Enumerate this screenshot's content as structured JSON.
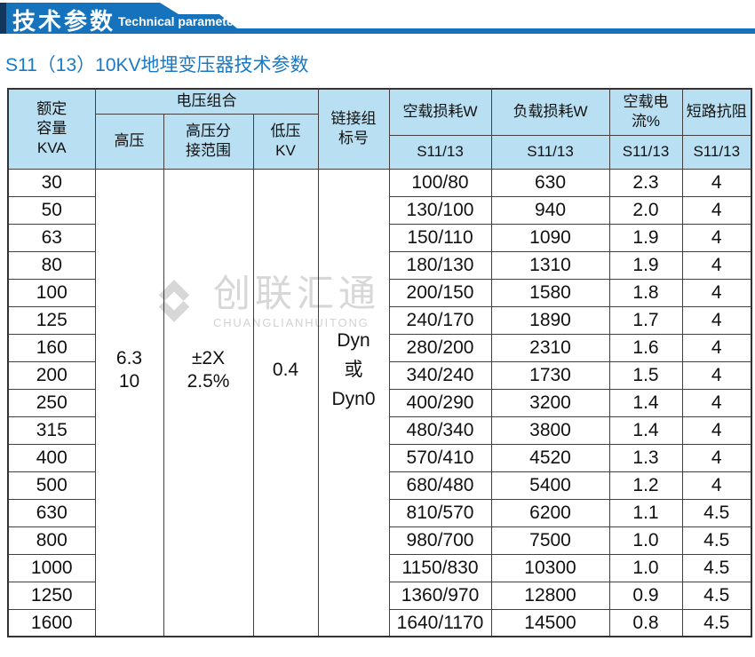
{
  "banner": {
    "title_cn": "技术参数",
    "title_en": "Technical parameter",
    "accent_color": "#1573bd",
    "dark_accent_color": "#12385e"
  },
  "page_title": "S11（13）10KV地埋变压器技术参数",
  "watermark": {
    "logo_icon": "diamond-pinwheel-logo",
    "name_cn": "创联汇通",
    "name_en": "CHUANGLIANHUITONG",
    "color": "#d7d7d7"
  },
  "table": {
    "header_fill": "#b9dff2",
    "header": {
      "capacity": "额定\n容量\nKVA",
      "voltage_group": "电压组合",
      "hv": "高压",
      "hv_tap": "高压分\n接范围",
      "lv": "低压\nKV",
      "vector_group": "链接组\n标号",
      "no_load_loss": "空载损耗W",
      "load_loss": "负载损耗W",
      "no_load_current": "空载电流%",
      "impedance": "短路抗阻",
      "model": "S11/13"
    },
    "merged": {
      "hv": "6.3\n10",
      "hv_tap": "±2X\n2.5%",
      "lv": "0.4",
      "vector_group": "Dyn\n或\nDyn0"
    },
    "rows": [
      {
        "capacity": "30",
        "no_load_loss": "100/80",
        "load_loss": "630",
        "no_load_current": "2.3",
        "impedance": "4"
      },
      {
        "capacity": "50",
        "no_load_loss": "130/100",
        "load_loss": "940",
        "no_load_current": "2.0",
        "impedance": "4"
      },
      {
        "capacity": "63",
        "no_load_loss": "150/110",
        "load_loss": "1090",
        "no_load_current": "1.9",
        "impedance": "4"
      },
      {
        "capacity": "80",
        "no_load_loss": "180/130",
        "load_loss": "1310",
        "no_load_current": "1.9",
        "impedance": "4"
      },
      {
        "capacity": "100",
        "no_load_loss": "200/150",
        "load_loss": "1580",
        "no_load_current": "1.8",
        "impedance": "4"
      },
      {
        "capacity": "125",
        "no_load_loss": "240/170",
        "load_loss": "1890",
        "no_load_current": "1.7",
        "impedance": "4"
      },
      {
        "capacity": "160",
        "no_load_loss": "280/200",
        "load_loss": "2310",
        "no_load_current": "1.6",
        "impedance": "4"
      },
      {
        "capacity": "200",
        "no_load_loss": "340/240",
        "load_loss": "1730",
        "no_load_current": "1.5",
        "impedance": "4"
      },
      {
        "capacity": "250",
        "no_load_loss": "400/290",
        "load_loss": "3200",
        "no_load_current": "1.4",
        "impedance": "4"
      },
      {
        "capacity": "315",
        "no_load_loss": "480/340",
        "load_loss": "3800",
        "no_load_current": "1.4",
        "impedance": "4"
      },
      {
        "capacity": "400",
        "no_load_loss": "570/410",
        "load_loss": "4520",
        "no_load_current": "1.3",
        "impedance": "4"
      },
      {
        "capacity": "500",
        "no_load_loss": "680/480",
        "load_loss": "5400",
        "no_load_current": "1.2",
        "impedance": "4"
      },
      {
        "capacity": "630",
        "no_load_loss": "810/570",
        "load_loss": "6200",
        "no_load_current": "1.1",
        "impedance": "4.5"
      },
      {
        "capacity": "800",
        "no_load_loss": "980/700",
        "load_loss": "7500",
        "no_load_current": "1.0",
        "impedance": "4.5"
      },
      {
        "capacity": "1000",
        "no_load_loss": "1150/830",
        "load_loss": "10300",
        "no_load_current": "1.0",
        "impedance": "4.5"
      },
      {
        "capacity": "1250",
        "no_load_loss": "1360/970",
        "load_loss": "12800",
        "no_load_current": "0.9",
        "impedance": "4.5"
      },
      {
        "capacity": "1600",
        "no_load_loss": "1640/1170",
        "load_loss": "14500",
        "no_load_current": "0.8",
        "impedance": "4.5"
      }
    ]
  }
}
